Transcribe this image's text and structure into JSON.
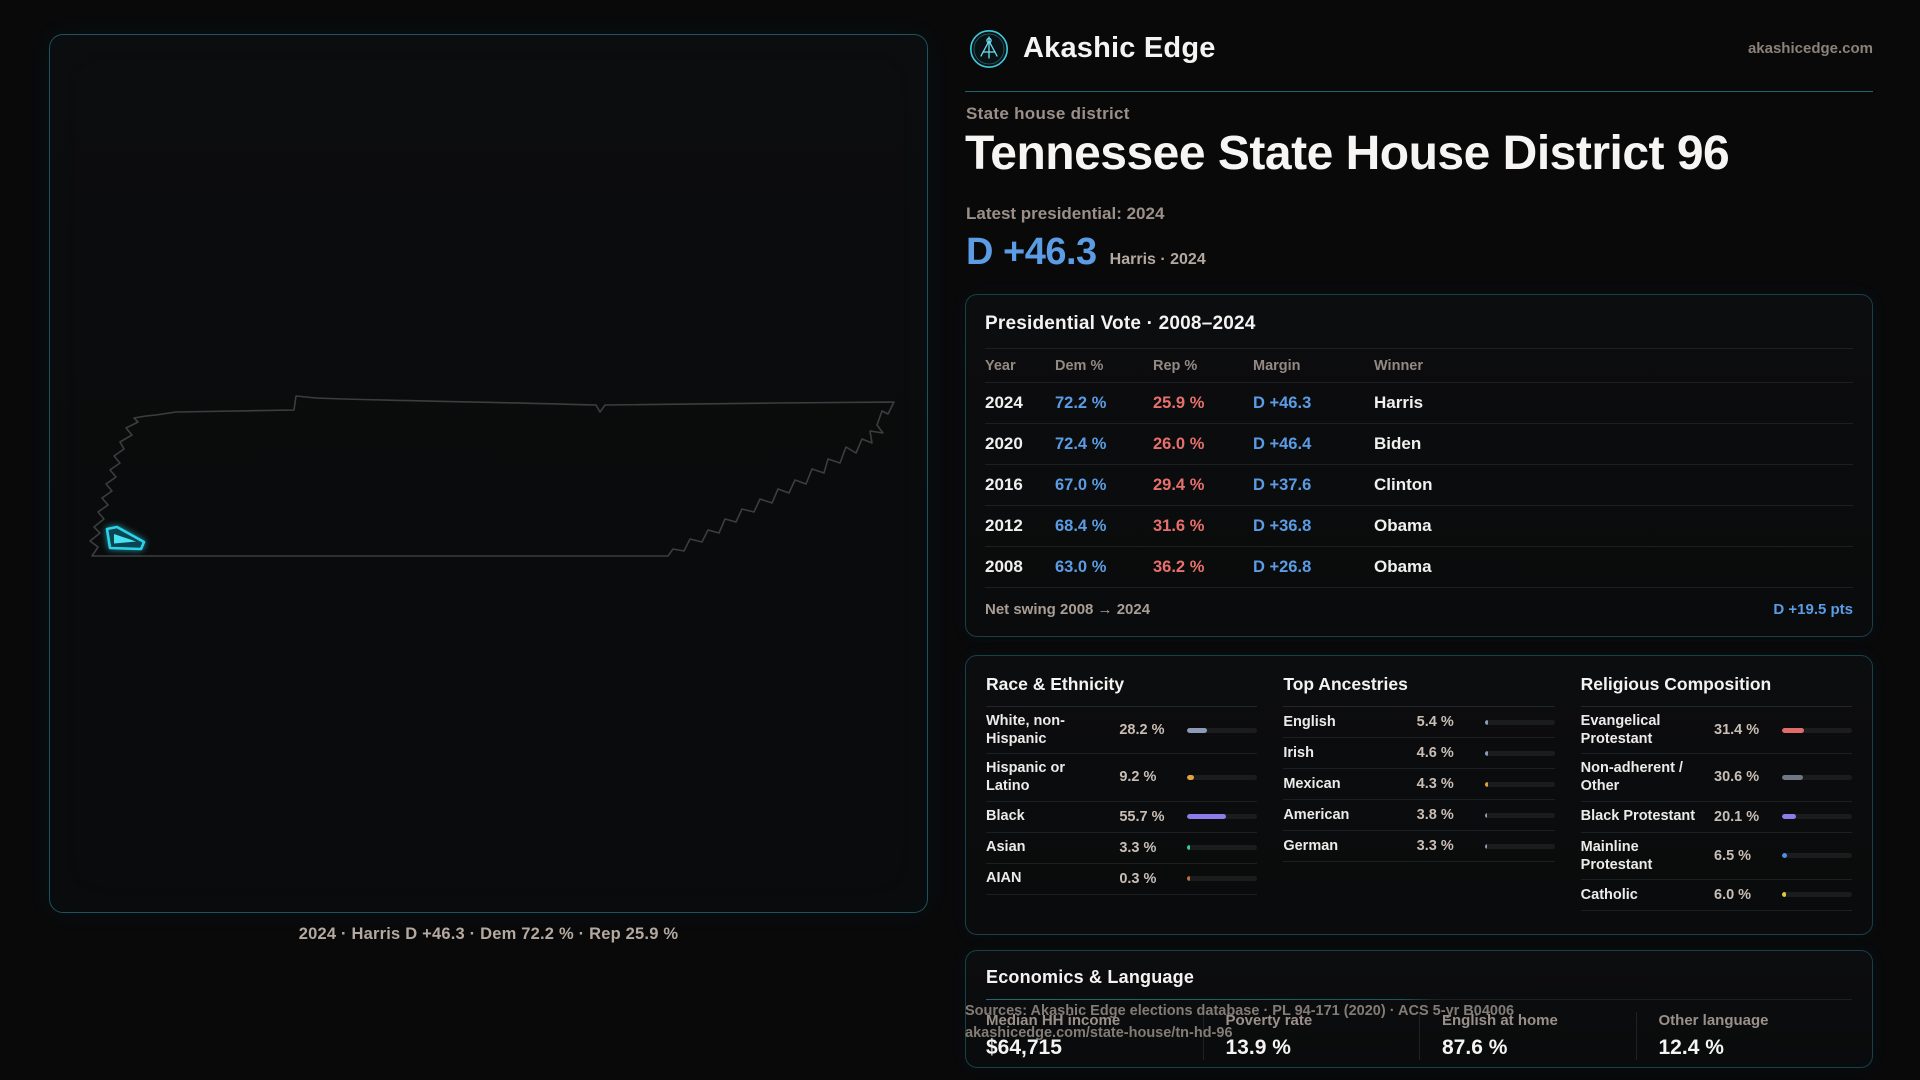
{
  "brand": {
    "name": "Akashic Edge",
    "domain": "akashicedge.com"
  },
  "map": {
    "caption": "2024 · Harris D +46.3 · Dem 72.2 % · Rep 25.9 %"
  },
  "header": {
    "eyebrow": "State house district",
    "title": "Tennessee State House District 96",
    "latest_label": "Latest presidential: 2024",
    "margin_value": "D +46.3",
    "margin_note": "Harris · 2024"
  },
  "presidential": {
    "title": "Presidential Vote · 2008–2024",
    "columns": [
      "Year",
      "Dem %",
      "Rep %",
      "Margin",
      "Winner"
    ],
    "rows": [
      {
        "year": "2024",
        "dem": "72.2 %",
        "rep": "25.9 %",
        "margin": "D +46.3",
        "winner": "Harris"
      },
      {
        "year": "2020",
        "dem": "72.4 %",
        "rep": "26.0 %",
        "margin": "D +46.4",
        "winner": "Biden"
      },
      {
        "year": "2016",
        "dem": "67.0 %",
        "rep": "29.4 %",
        "margin": "D +37.6",
        "winner": "Clinton"
      },
      {
        "year": "2012",
        "dem": "68.4 %",
        "rep": "31.6 %",
        "margin": "D +36.8",
        "winner": "Obama"
      },
      {
        "year": "2008",
        "dem": "63.0 %",
        "rep": "36.2 %",
        "margin": "D +26.8",
        "winner": "Obama"
      }
    ],
    "net_swing_label": "Net swing 2008 → 2024",
    "net_swing_value": "D +19.5 pts"
  },
  "race": {
    "title": "Race & Ethnicity",
    "rows": [
      {
        "label": "White, non-Hispanic",
        "value": "28.2 %",
        "pct": 28.2,
        "color": "#8c9cb8"
      },
      {
        "label": "Hispanic or Latino",
        "value": "9.2 %",
        "pct": 9.2,
        "color": "#e6a23e"
      },
      {
        "label": "Black",
        "value": "55.7 %",
        "pct": 55.7,
        "color": "#8d7bea"
      },
      {
        "label": "Asian",
        "value": "3.3 %",
        "pct": 3.3,
        "color": "#2fd0a2"
      },
      {
        "label": "AIAN",
        "value": "0.3 %",
        "pct": 0.3,
        "color": "#c0703c"
      }
    ]
  },
  "ancestries": {
    "title": "Top Ancestries",
    "rows": [
      {
        "label": "English",
        "value": "5.4 %",
        "pct": 5.4,
        "color": "#8c9cb8"
      },
      {
        "label": "Irish",
        "value": "4.6 %",
        "pct": 4.6,
        "color": "#8c9cb8"
      },
      {
        "label": "Mexican",
        "value": "4.3 %",
        "pct": 4.3,
        "color": "#e6a23e"
      },
      {
        "label": "American",
        "value": "3.8 %",
        "pct": 3.8,
        "color": "#8c9cb8"
      },
      {
        "label": "German",
        "value": "3.3 %",
        "pct": 3.3,
        "color": "#8c9cb8"
      }
    ]
  },
  "religion": {
    "title": "Religious Composition",
    "rows": [
      {
        "label": "Evangelical Protestant",
        "value": "31.4 %",
        "pct": 31.4,
        "color": "#e06c6c"
      },
      {
        "label": "Non-adherent / Other",
        "value": "30.6 %",
        "pct": 30.6,
        "color": "#6f7684"
      },
      {
        "label": "Black Protestant",
        "value": "20.1 %",
        "pct": 20.1,
        "color": "#8d7bea"
      },
      {
        "label": "Mainline Protestant",
        "value": "6.5 %",
        "pct": 6.5,
        "color": "#4a8fe8"
      },
      {
        "label": "Catholic",
        "value": "6.0 %",
        "pct": 6.0,
        "color": "#e3c83e"
      }
    ]
  },
  "economics": {
    "title": "Economics & Language",
    "stats": [
      {
        "label": "Median HH income",
        "value": "$64,715"
      },
      {
        "label": "Poverty rate",
        "value": "13.9 %"
      },
      {
        "label": "English at home",
        "value": "87.6 %"
      },
      {
        "label": "Other language",
        "value": "12.4 %"
      }
    ]
  },
  "sources": {
    "line1": "Sources: Akashic Edge elections database · PL 94-171 (2020) · ACS 5-yr B04006",
    "line2": "akashicedge.com/state-house/tn-hd-96"
  },
  "colors": {
    "dem": "#5b9ce4",
    "rep": "#e8706c",
    "accent": "#2fd4ea",
    "background": "#09090a"
  }
}
